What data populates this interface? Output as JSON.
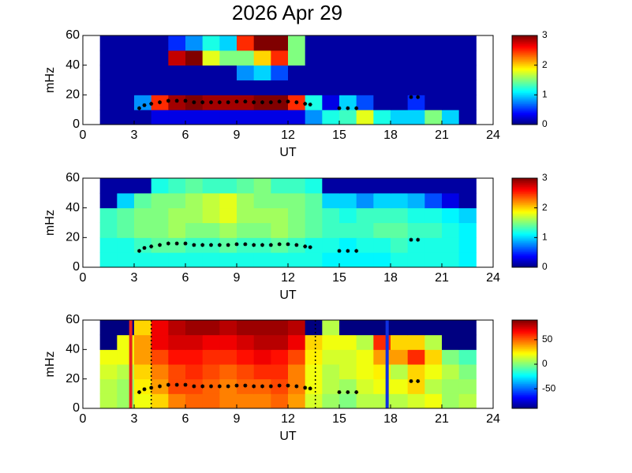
{
  "chart_data": [
    {
      "type": "heatmap",
      "title": "2026 Apr 29",
      "xlabel": "UT",
      "ylabel": "mHz",
      "xlim": [
        0,
        24
      ],
      "xticks": [
        0,
        3,
        6,
        9,
        12,
        15,
        18,
        21,
        24
      ],
      "ylim": [
        0,
        60
      ],
      "yticks": [
        0,
        20,
        40,
        60
      ],
      "x_edges": [
        1,
        2,
        3,
        4,
        5,
        6,
        7,
        8,
        9,
        10,
        11,
        12,
        13,
        14,
        15,
        16,
        17,
        18,
        19,
        20,
        21,
        22,
        23
      ],
      "y_edges": [
        0,
        10,
        20,
        30,
        40,
        50,
        60
      ],
      "colormap": "jet",
      "clim": [
        0,
        3
      ],
      "cticks": [
        0,
        1,
        2,
        3
      ],
      "z": [
        [
          0.1,
          0.1,
          0.1,
          0.3,
          0.3,
          0.3,
          0.3,
          0.3,
          0.3,
          0.3,
          0.3,
          0.3,
          0.8,
          1.2,
          1.3,
          1.8,
          1.2,
          1.0,
          1.0,
          1.5,
          1.0,
          0.1
        ],
        [
          0.1,
          0.1,
          0.8,
          2.5,
          2.9,
          3,
          2.9,
          2.9,
          2.9,
          3,
          3,
          2.5,
          1.2,
          0.3,
          1.0,
          0.6,
          0.1,
          0.1,
          0.5,
          0.1,
          0.1,
          0.1
        ],
        [
          0.1,
          0.1,
          0.1,
          0.1,
          0.1,
          0.1,
          0.1,
          0.1,
          0.1,
          0.1,
          0.1,
          0.1,
          0.1,
          0.1,
          0.1,
          0.1,
          0.1,
          0.1,
          0.1,
          0.1,
          0.1,
          0.1
        ],
        [
          0.1,
          0.1,
          0.1,
          0.1,
          0.1,
          0.1,
          0.1,
          0.1,
          0.8,
          1.0,
          0.6,
          0.1,
          0.1,
          0.1,
          0.1,
          0.1,
          0.1,
          0.1,
          0.1,
          0.1,
          0.1,
          0.1
        ],
        [
          0.1,
          0.1,
          0.1,
          0.1,
          2.8,
          3,
          1.8,
          1.5,
          1.5,
          2.0,
          2.5,
          1.5,
          0.1,
          0.1,
          0.1,
          0.1,
          0.1,
          0.1,
          0.1,
          0.1,
          0.1,
          0.1
        ],
        [
          0.1,
          0.1,
          0.1,
          0.1,
          0.5,
          0.8,
          1.2,
          1.0,
          2.5,
          3,
          3,
          1.5,
          0.1,
          0.1,
          0.1,
          0.1,
          0.1,
          0.1,
          0.1,
          0.1,
          0.1,
          0.1
        ]
      ],
      "markers": {
        "color": "#000000",
        "x": [
          3.3,
          3.6,
          4,
          4.5,
          5,
          5.5,
          6,
          6.5,
          7,
          7.5,
          8,
          8.5,
          9,
          9.5,
          10,
          10.5,
          11,
          11.5,
          12,
          12.5,
          13,
          13.3,
          15,
          15.5,
          16,
          19.2,
          19.6
        ],
        "y": [
          11,
          13,
          14,
          15,
          16,
          16,
          16,
          15,
          15,
          15,
          15,
          15,
          15.5,
          15.5,
          15,
          15,
          15,
          15.5,
          15.5,
          15,
          14,
          13.5,
          11,
          11,
          11,
          18.5,
          18.5
        ]
      }
    },
    {
      "type": "heatmap",
      "xlabel": "UT",
      "ylabel": "mHz",
      "xlim": [
        0,
        24
      ],
      "xticks": [
        0,
        3,
        6,
        9,
        12,
        15,
        18,
        21,
        24
      ],
      "ylim": [
        0,
        60
      ],
      "yticks": [
        0,
        20,
        40,
        60
      ],
      "x_edges": [
        1,
        2,
        3,
        4,
        5,
        6,
        7,
        8,
        9,
        10,
        11,
        12,
        13,
        14,
        15,
        16,
        17,
        18,
        19,
        20,
        21,
        22,
        23
      ],
      "y_edges": [
        0,
        10,
        20,
        30,
        40,
        50,
        60
      ],
      "colormap": "jet",
      "clim": [
        0,
        3
      ],
      "cticks": [
        0,
        1,
        2,
        3
      ],
      "z": [
        [
          1.2,
          1.2,
          1.2,
          1.2,
          1.2,
          1.2,
          1.2,
          1.2,
          1.2,
          1.2,
          1.2,
          1.2,
          1.2,
          1.1,
          1.1,
          1.1,
          1.1,
          1.2,
          1.2,
          1.2,
          1.2,
          1.1
        ],
        [
          1.2,
          1.2,
          1.3,
          1.4,
          1.4,
          1.3,
          1.3,
          1.4,
          1.3,
          1.3,
          1.4,
          1.3,
          1.2,
          1.2,
          1.1,
          1.2,
          1.2,
          1.3,
          1.2,
          1.2,
          1.2,
          1.1
        ],
        [
          1.3,
          1.4,
          1.5,
          1.5,
          1.6,
          1.5,
          1.5,
          1.6,
          1.5,
          1.5,
          1.6,
          1.5,
          1.4,
          1.3,
          1.3,
          1.3,
          1.4,
          1.4,
          1.3,
          1.3,
          1.2,
          1.1
        ],
        [
          1.3,
          1.4,
          1.5,
          1.5,
          1.6,
          1.6,
          1.7,
          1.8,
          1.6,
          1.6,
          1.6,
          1.5,
          1.4,
          1.3,
          1.2,
          1.3,
          1.3,
          1.3,
          1.2,
          1.2,
          1.1,
          1.0
        ],
        [
          0.1,
          1.0,
          1.4,
          1.5,
          1.5,
          1.6,
          1.7,
          1.8,
          1.6,
          1.5,
          1.5,
          1.5,
          1.4,
          1.0,
          1.0,
          0.8,
          1.0,
          1.0,
          0.9,
          0.6,
          0.3,
          0.1
        ],
        [
          0.1,
          0.1,
          0.1,
          1.2,
          1.3,
          1.4,
          1.3,
          1.3,
          1.4,
          1.5,
          1.3,
          1.3,
          1.2,
          0.1,
          0.1,
          0.1,
          0.1,
          0.1,
          0.1,
          0.1,
          0.1,
          0.1
        ]
      ],
      "markers": {
        "color": "#000000",
        "x": [
          3.3,
          3.6,
          4,
          4.5,
          5,
          5.5,
          6,
          6.5,
          7,
          7.5,
          8,
          8.5,
          9,
          9.5,
          10,
          10.5,
          11,
          11.5,
          12,
          12.5,
          13,
          13.3,
          15,
          15.5,
          16,
          19.2,
          19.6
        ],
        "y": [
          11,
          13,
          14,
          15,
          16,
          16,
          16,
          15,
          15,
          15,
          15,
          15,
          15.5,
          15.5,
          15,
          15,
          15,
          15.5,
          15.5,
          15,
          14,
          13.5,
          11,
          11,
          11,
          18.5,
          18.5
        ]
      }
    },
    {
      "type": "heatmap",
      "xlabel": "UT",
      "ylabel": "mHz",
      "xlim": [
        0,
        24
      ],
      "xticks": [
        0,
        3,
        6,
        9,
        12,
        15,
        18,
        21,
        24
      ],
      "ylim": [
        0,
        60
      ],
      "yticks": [
        0,
        20,
        40,
        60
      ],
      "x_edges": [
        1,
        2,
        3,
        4,
        5,
        6,
        7,
        8,
        9,
        10,
        11,
        12,
        13,
        14,
        15,
        16,
        17,
        18,
        19,
        20,
        21,
        22,
        23
      ],
      "y_edges": [
        0,
        10,
        20,
        30,
        40,
        50,
        60
      ],
      "colormap": "jet",
      "clim": [
        -90,
        90
      ],
      "cticks": [
        -50,
        0,
        50
      ],
      "z": [
        [
          10,
          5,
          20,
          30,
          45,
          50,
          50,
          45,
          45,
          45,
          50,
          40,
          15,
          5,
          0,
          10,
          10,
          10,
          15,
          20,
          5,
          10
        ],
        [
          10,
          5,
          25,
          40,
          55,
          55,
          50,
          45,
          50,
          50,
          55,
          45,
          20,
          10,
          5,
          15,
          20,
          20,
          30,
          10,
          5,
          5
        ],
        [
          15,
          10,
          30,
          45,
          55,
          60,
          55,
          50,
          55,
          60,
          60,
          45,
          20,
          10,
          15,
          20,
          25,
          10,
          30,
          20,
          10,
          0
        ],
        [
          20,
          20,
          40,
          55,
          65,
          65,
          60,
          60,
          65,
          70,
          65,
          55,
          25,
          15,
          15,
          20,
          40,
          40,
          60,
          30,
          0,
          -10
        ],
        [
          -90,
          20,
          40,
          70,
          75,
          75,
          70,
          70,
          75,
          80,
          80,
          70,
          30,
          20,
          20,
          10,
          60,
          30,
          30,
          10,
          -90,
          -90
        ],
        [
          -90,
          -90,
          30,
          70,
          80,
          85,
          85,
          80,
          85,
          85,
          85,
          80,
          -90,
          10,
          -90,
          -90,
          -90,
          -90,
          -90,
          -90,
          -90,
          -90
        ]
      ],
      "markers": {
        "color": "#000000",
        "x": [
          3.3,
          3.6,
          4,
          4.5,
          5,
          5.5,
          6,
          6.5,
          7,
          7.5,
          8,
          8.5,
          9,
          9.5,
          10,
          10.5,
          11,
          11.5,
          12,
          12.5,
          13,
          13.3,
          15,
          15.5,
          16,
          19.2,
          19.6
        ],
        "y": [
          11,
          13,
          14,
          15,
          16,
          16,
          16,
          15,
          15,
          15,
          15,
          15,
          15.5,
          15.5,
          15,
          15,
          15,
          15.5,
          15.5,
          15,
          14,
          13.5,
          11,
          11,
          11,
          18.5,
          18.5
        ]
      },
      "vlines": [
        {
          "x": 2.8,
          "color": "#e8231c",
          "style": "solid"
        },
        {
          "x": 4,
          "color": "#000000",
          "style": "dotted"
        },
        {
          "x": 13.6,
          "color": "#000000",
          "style": "dotted"
        },
        {
          "x": 17.8,
          "color": "#1030e0",
          "style": "solid"
        }
      ]
    }
  ]
}
